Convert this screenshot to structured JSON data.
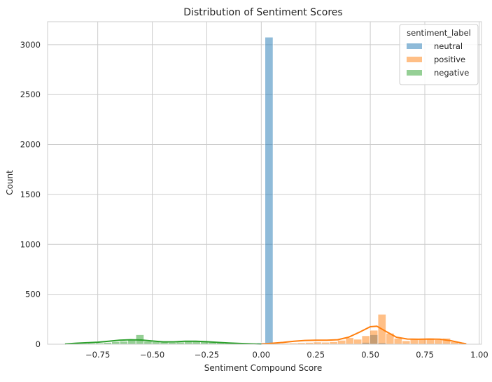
{
  "chart_data": {
    "type": "histogram",
    "title": "Distribution of Sentiment Scores",
    "xlabel": "Sentiment Compound Score",
    "ylabel": "Count",
    "xlim": [
      -0.98,
      1.01
    ],
    "ylim": [
      0,
      3230
    ],
    "xticks": [
      -0.75,
      -0.5,
      -0.25,
      0.0,
      0.25,
      0.5,
      0.75,
      1.0
    ],
    "xtick_labels": [
      "−0.75",
      "−0.50",
      "−0.25",
      "0.00",
      "0.25",
      "0.50",
      "0.75",
      "1.00"
    ],
    "yticks": [
      0,
      500,
      1000,
      1500,
      2000,
      2500,
      3000
    ],
    "ytick_labels": [
      "0",
      "500",
      "1000",
      "1500",
      "2000",
      "2500",
      "3000"
    ],
    "grid": true,
    "legend": {
      "title": "sentiment_label",
      "placement": "top-right"
    },
    "bin_width": 0.037,
    "series": [
      {
        "name": "neutral",
        "color": "#1f77b4",
        "bars": [
          [
            -0.02,
            15
          ],
          [
            0.017,
            3075
          ],
          [
            0.054,
            12
          ],
          [
            0.461,
            18
          ],
          [
            0.498,
            95
          ],
          [
            0.535,
            15
          ]
        ],
        "kde": []
      },
      {
        "name": "positive",
        "color": "#ff7f0e",
        "bars": [
          [
            0.017,
            6
          ],
          [
            0.054,
            8
          ],
          [
            0.091,
            10
          ],
          [
            0.128,
            12
          ],
          [
            0.165,
            15
          ],
          [
            0.202,
            18
          ],
          [
            0.239,
            22
          ],
          [
            0.276,
            20
          ],
          [
            0.313,
            25
          ],
          [
            0.35,
            40
          ],
          [
            0.387,
            65
          ],
          [
            0.424,
            50
          ],
          [
            0.461,
            85
          ],
          [
            0.498,
            140
          ],
          [
            0.535,
            300
          ],
          [
            0.572,
            110
          ],
          [
            0.609,
            60
          ],
          [
            0.646,
            35
          ],
          [
            0.683,
            55
          ],
          [
            0.72,
            50
          ],
          [
            0.757,
            60
          ],
          [
            0.794,
            45
          ],
          [
            0.831,
            60
          ],
          [
            0.868,
            25
          ],
          [
            0.905,
            12
          ]
        ],
        "kde": [
          [
            0.0,
            3
          ],
          [
            0.05,
            10
          ],
          [
            0.1,
            18
          ],
          [
            0.15,
            30
          ],
          [
            0.2,
            38
          ],
          [
            0.25,
            40
          ],
          [
            0.3,
            40
          ],
          [
            0.35,
            45
          ],
          [
            0.4,
            70
          ],
          [
            0.45,
            120
          ],
          [
            0.5,
            175
          ],
          [
            0.53,
            180
          ],
          [
            0.57,
            130
          ],
          [
            0.62,
            70
          ],
          [
            0.67,
            52
          ],
          [
            0.72,
            50
          ],
          [
            0.77,
            52
          ],
          [
            0.82,
            50
          ],
          [
            0.87,
            35
          ],
          [
            0.92,
            12
          ],
          [
            0.94,
            4
          ]
        ]
      },
      {
        "name": "negative",
        "color": "#2ca02c",
        "bars": [
          [
            -0.871,
            5
          ],
          [
            -0.834,
            8
          ],
          [
            -0.797,
            10
          ],
          [
            -0.76,
            12
          ],
          [
            -0.723,
            18
          ],
          [
            -0.686,
            25
          ],
          [
            -0.649,
            30
          ],
          [
            -0.612,
            45
          ],
          [
            -0.575,
            95
          ],
          [
            -0.538,
            30
          ],
          [
            -0.501,
            25
          ],
          [
            -0.464,
            20
          ],
          [
            -0.427,
            18
          ],
          [
            -0.39,
            22
          ],
          [
            -0.353,
            28
          ],
          [
            -0.316,
            30
          ],
          [
            -0.279,
            25
          ],
          [
            -0.242,
            20
          ],
          [
            -0.205,
            15
          ],
          [
            -0.168,
            12
          ],
          [
            -0.131,
            10
          ],
          [
            -0.094,
            8
          ],
          [
            -0.057,
            6
          ]
        ],
        "kde": [
          [
            -0.9,
            3
          ],
          [
            -0.85,
            10
          ],
          [
            -0.8,
            15
          ],
          [
            -0.75,
            20
          ],
          [
            -0.7,
            30
          ],
          [
            -0.65,
            40
          ],
          [
            -0.6,
            45
          ],
          [
            -0.55,
            42
          ],
          [
            -0.5,
            32
          ],
          [
            -0.45,
            24
          ],
          [
            -0.4,
            24
          ],
          [
            -0.35,
            30
          ],
          [
            -0.3,
            30
          ],
          [
            -0.25,
            25
          ],
          [
            -0.2,
            18
          ],
          [
            -0.15,
            12
          ],
          [
            -0.1,
            8
          ],
          [
            -0.05,
            4
          ],
          [
            0.0,
            2
          ]
        ]
      }
    ]
  }
}
